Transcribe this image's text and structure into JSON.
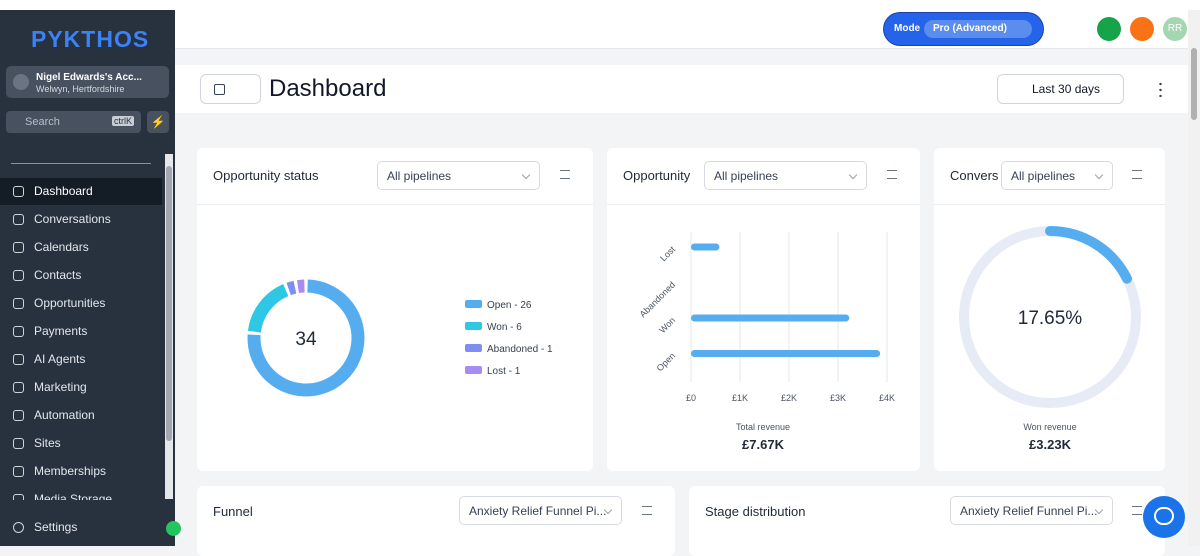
{
  "sidebar": {
    "logo": "PYKTHOS",
    "account": {
      "name": "Nigel Edwards's Acc...",
      "location": "Welwyn, Hertfordshire"
    },
    "search": {
      "placeholder": "Search",
      "shortcut": "ctrlK"
    },
    "nav": [
      "Dashboard",
      "Conversations",
      "Calendars",
      "Contacts",
      "Opportunities",
      "Payments",
      "AI Agents",
      "Marketing",
      "Automation",
      "Sites",
      "Memberships",
      "Media Storage"
    ],
    "settings": "Settings"
  },
  "topbar": {
    "mode_label": "Mode",
    "mode_value": "Pro (Advanced)",
    "avatar": "RR"
  },
  "header": {
    "title": "Dashboard",
    "date_range": "Last 30 days"
  },
  "opportunity_status": {
    "title": "Opportunity status",
    "filter": "All pipelines",
    "total": 34,
    "segments": [
      {
        "label": "Open - 26",
        "value": 26,
        "color": "#55adf0"
      },
      {
        "label": "Won - 6",
        "value": 6,
        "color": "#2ec8e6"
      },
      {
        "label": "Abandoned - 1",
        "value": 1,
        "color": "#7f8ef0"
      },
      {
        "label": "Lost - 1",
        "value": 1,
        "color": "#a78bf0"
      }
    ]
  },
  "opportunity_value": {
    "title": "Opportunity",
    "filter": "All pipelines",
    "categories": [
      "Lost",
      "Abandoned",
      "Won",
      "Open"
    ],
    "values": [
      580,
      0,
      3230,
      3860
    ],
    "color": "#55adf0",
    "xlim": [
      0,
      4000
    ],
    "xticks": [
      {
        "value": 0,
        "label": "£0"
      },
      {
        "value": 1000,
        "label": "£1K"
      },
      {
        "value": 2000,
        "label": "£2K"
      },
      {
        "value": 3000,
        "label": "£3K"
      },
      {
        "value": 4000,
        "label": "£4K"
      }
    ],
    "caption": "Total revenue",
    "total": "£7.67K"
  },
  "conversion": {
    "title": "Convers",
    "filter": "All pipelines",
    "value": 17.65,
    "value_label": "17.65%",
    "caption": "Won revenue",
    "total": "£3.23K"
  },
  "funnel": {
    "title": "Funnel",
    "filter": "Anxiety Relief Funnel Pi..."
  },
  "stage_distribution": {
    "title": "Stage distribution",
    "filter": "Anxiety Relief Funnel Pi..."
  }
}
